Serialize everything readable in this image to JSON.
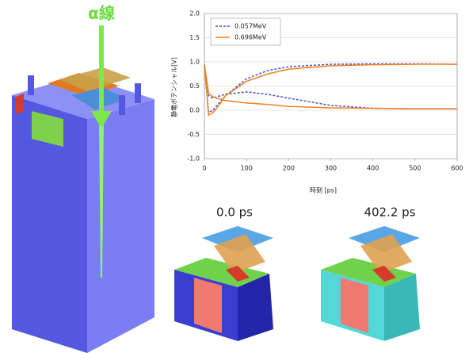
{
  "chart_data": {
    "type": "line",
    "x_label": "時刻 [ps]",
    "y_label": "静電ポテンシャル[V]",
    "x": [
      0,
      10,
      20,
      30,
      50,
      100,
      150,
      200,
      300,
      400,
      500,
      600
    ],
    "series": [
      {
        "name": "0.057MeV",
        "color": "#4a50d8",
        "dashed": true,
        "curves": [
          [
            0.9,
            -0.05,
            0.0,
            0.1,
            0.3,
            0.65,
            0.82,
            0.9,
            0.95,
            0.96,
            0.96,
            0.95
          ],
          [
            0.9,
            0.3,
            0.25,
            0.28,
            0.33,
            0.38,
            0.33,
            0.25,
            0.1,
            0.04,
            0.03,
            0.03
          ]
        ]
      },
      {
        "name": "0.696MeV",
        "color": "#f0821e",
        "dashed": false,
        "curves": [
          [
            0.95,
            -0.1,
            -0.05,
            0.05,
            0.3,
            0.6,
            0.75,
            0.85,
            0.92,
            0.94,
            0.95,
            0.95
          ],
          [
            0.95,
            0.35,
            0.28,
            0.25,
            0.2,
            0.15,
            0.12,
            0.08,
            0.05,
            0.04,
            0.03,
            0.03
          ]
        ]
      }
    ],
    "xlim": [
      0,
      600
    ],
    "xticks": [
      0,
      100,
      200,
      300,
      400,
      500,
      600
    ],
    "ylim": [
      -1,
      2
    ],
    "yticks": [
      {
        "value": -1,
        "label": "-1.0"
      },
      {
        "value": -0.5,
        "label": "-0.5"
      },
      {
        "value": 0,
        "label": "0.0"
      },
      {
        "value": 0.5,
        "label": "0.5"
      },
      {
        "value": 1,
        "label": "1.0"
      },
      {
        "value": 1.5,
        "label": "1.5"
      },
      {
        "value": 2,
        "label": "2.0"
      }
    ],
    "grid": true,
    "legend": "upper left",
    "annotations": [
      "α線",
      "0.0 ps",
      "402.2 ps"
    ]
  }
}
